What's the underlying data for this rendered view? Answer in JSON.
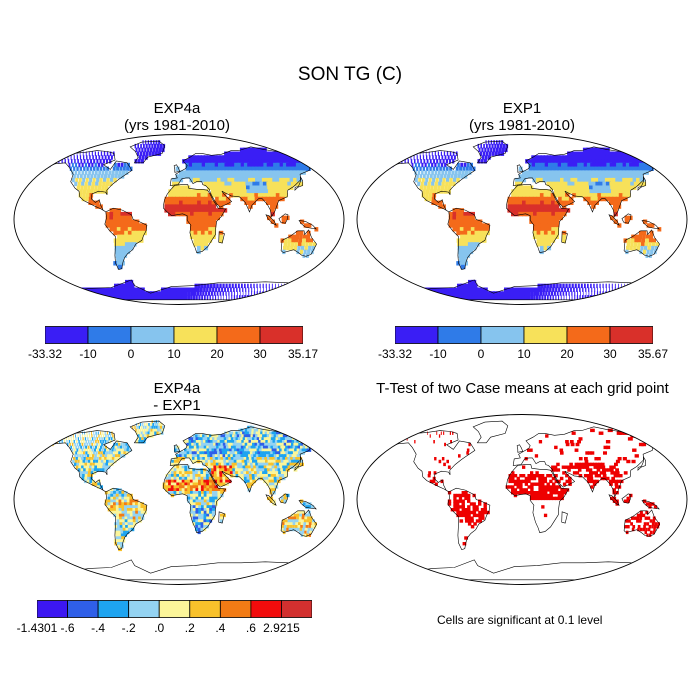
{
  "figure": {
    "title": "SON TG (C)"
  },
  "panels": [
    {
      "id": "exp4a",
      "title_line1": "EXP4a",
      "title_line2": "(yrs 1981-2010)"
    },
    {
      "id": "exp1",
      "title_line1": "EXP1",
      "title_line2": "(yrs 1981-2010)"
    },
    {
      "id": "diff",
      "title_line1": "EXP4a",
      "title_line2": "- EXP1"
    },
    {
      "id": "ttest",
      "title_line1": "T-Test of two Case means at each grid point",
      "title_line2": ""
    }
  ],
  "colorbars": {
    "exp4a": {
      "colors": [
        "#3a1ef5",
        "#2f7be8",
        "#86c4ee",
        "#f7e15a",
        "#f46a1a",
        "#d9302a"
      ],
      "labels": [
        "-33.32",
        "-10",
        "0",
        "10",
        "20",
        "30",
        "35.17"
      ]
    },
    "exp1": {
      "colors": [
        "#3a1ef5",
        "#2f7be8",
        "#86c4ee",
        "#f7e15a",
        "#f46a1a",
        "#d9302a"
      ],
      "labels": [
        "-33.32",
        "-10",
        "0",
        "10",
        "20",
        "30",
        "35.67"
      ]
    },
    "diff": {
      "colors": [
        "#3c17f2",
        "#2f5fe8",
        "#1ea4f0",
        "#94d3f2",
        "#fbf59a",
        "#f8c12b",
        "#f27b15",
        "#f20c0c",
        "#d2302f"
      ],
      "labels": [
        "-1.4301",
        "-.6",
        "-.4",
        "-.2",
        ".0",
        ".2",
        ".4",
        ".6",
        "2.9215"
      ]
    }
  },
  "ttest_note": "Cells are significant at 0.1 level",
  "chart_data": [
    {
      "type": "heatmap",
      "title": "EXP4a",
      "subtitle": "(yrs 1981-2010)",
      "field": "SON TG (C)",
      "min": -33.32,
      "max": 35.17,
      "levels": [
        -10,
        0,
        10,
        20,
        30
      ]
    },
    {
      "type": "heatmap",
      "title": "EXP1",
      "subtitle": "(yrs 1981-2010)",
      "field": "SON TG (C)",
      "min": -33.32,
      "max": 35.67,
      "levels": [
        -10,
        0,
        10,
        20,
        30
      ]
    },
    {
      "type": "heatmap",
      "title": "EXP4a - EXP1",
      "field": "SON TG (C)",
      "min": -1.4301,
      "max": 2.9215,
      "levels": [
        -0.6,
        -0.4,
        -0.2,
        0.0,
        0.2,
        0.4,
        0.6
      ]
    },
    {
      "type": "heatmap",
      "title": "T-Test of two Case means at each grid point",
      "note": "Cells are significant at 0.1 level",
      "significance_level": 0.1
    }
  ]
}
